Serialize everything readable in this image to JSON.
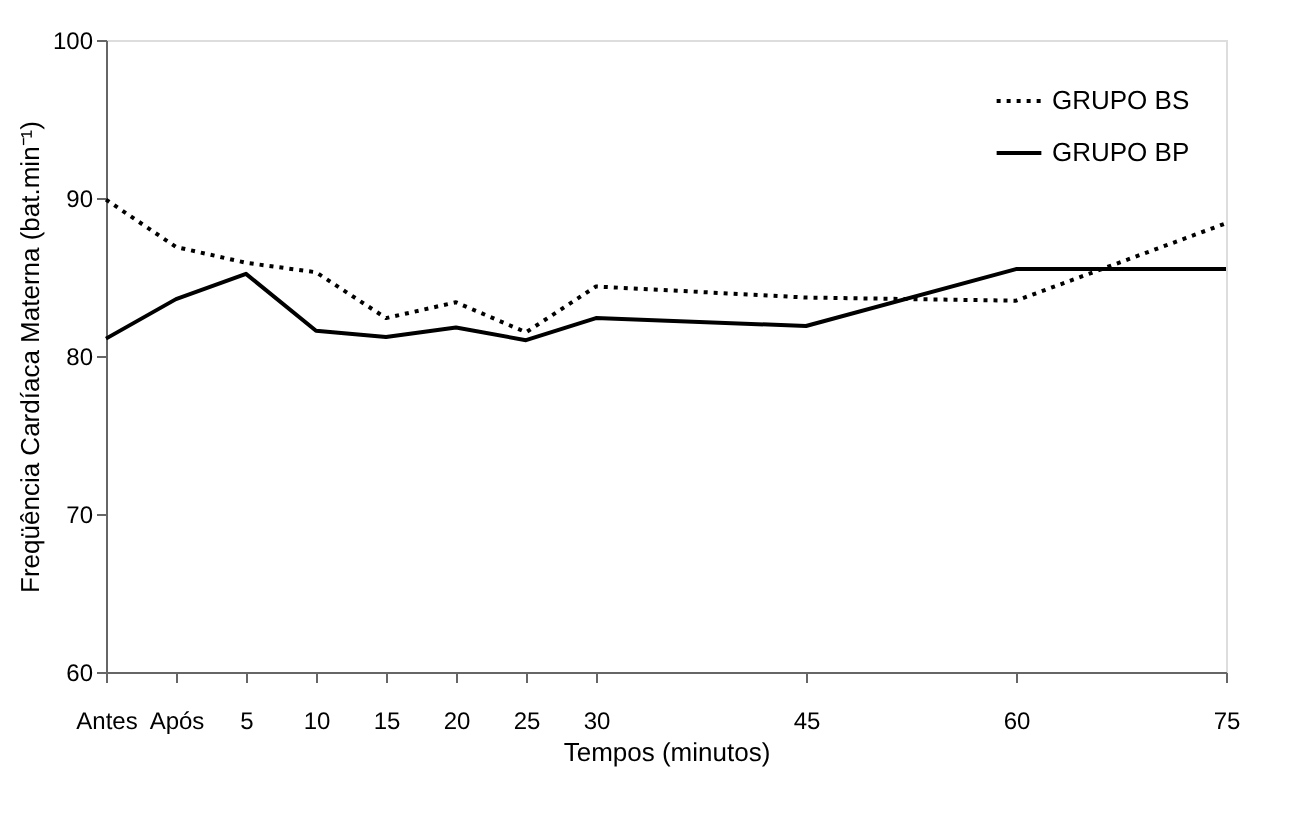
{
  "chart_data": {
    "type": "line",
    "xlabel": "Tempos (minutos)",
    "ylabel": "Freqüência Cardíaca Materna (bat.min⁻¹)",
    "x": [
      -5,
      0,
      5,
      10,
      15,
      20,
      25,
      30,
      45,
      60,
      75
    ],
    "xlim": [
      -5,
      75
    ],
    "xticks": [
      {
        "value": -5,
        "label": "Antes"
      },
      {
        "value": 0,
        "label": "Após"
      },
      5,
      10,
      15,
      20,
      25,
      30,
      45,
      60,
      75
    ],
    "ylim": [
      60,
      100
    ],
    "yticks": [
      60,
      70,
      80,
      90,
      100
    ],
    "grid": false,
    "legend": "top right",
    "marker": "none",
    "series": [
      {
        "name": "GRUPO BS",
        "color": "#000000",
        "line_style": "dotted",
        "values": [
          89.9,
          86.9,
          85.9,
          85.3,
          82.4,
          83.4,
          81.5,
          84.4,
          83.7,
          83.5,
          88.4
        ]
      },
      {
        "name": "GRUPO BP",
        "color": "#000000",
        "line_style": "solid",
        "values": [
          81.1,
          83.6,
          85.2,
          81.6,
          81.2,
          81.8,
          81.0,
          82.4,
          81.9,
          85.5,
          85.5
        ]
      }
    ]
  }
}
